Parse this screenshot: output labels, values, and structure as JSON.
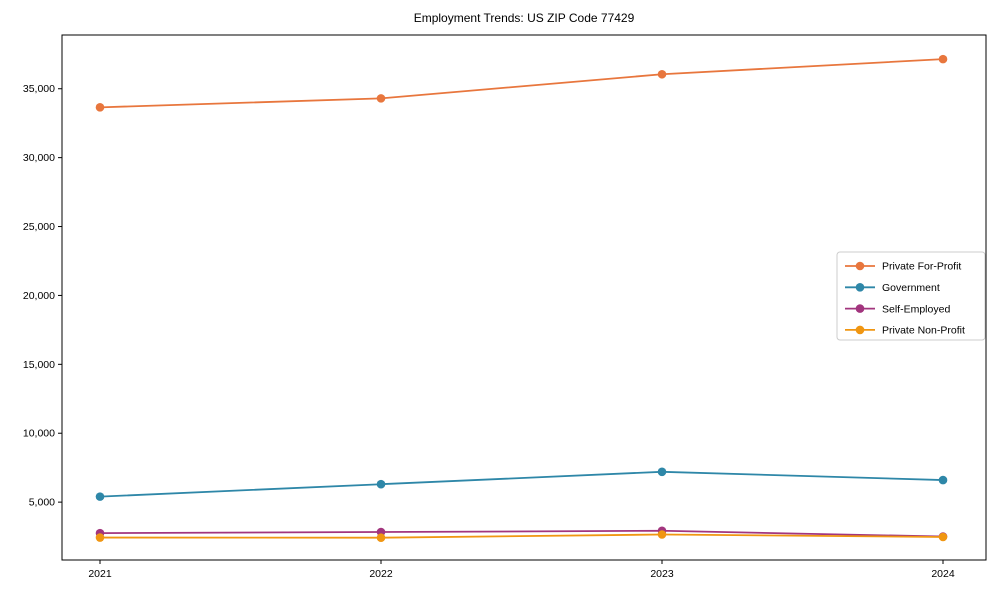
{
  "figure": {
    "title": "Employment Trends: US ZIP Code 77429",
    "background_color": "#ffffff",
    "axis_color": "#000000"
  },
  "chart_data": {
    "type": "line",
    "title": "Employment Trends: US ZIP Code 77429",
    "xlabel": "",
    "ylabel": "",
    "categories": [
      "2021",
      "2022",
      "2023",
      "2024"
    ],
    "x": [
      2021,
      2022,
      2023,
      2024
    ],
    "series": [
      {
        "name": "Private For-Profit",
        "color": "#e8763d",
        "values": [
          33650,
          34300,
          36050,
          37150
        ]
      },
      {
        "name": "Government",
        "color": "#2e87a8",
        "values": [
          5400,
          6300,
          7200,
          6600
        ]
      },
      {
        "name": "Self-Employed",
        "color": "#a2357e",
        "values": [
          2750,
          2830,
          2920,
          2500
        ]
      },
      {
        "name": "Private Non-Profit",
        "color": "#f09612",
        "values": [
          2430,
          2420,
          2650,
          2470
        ]
      }
    ],
    "ylim": [
      800,
      38900
    ],
    "y_ticks": [
      5000,
      10000,
      15000,
      20000,
      25000,
      30000,
      35000
    ],
    "y_tick_labels": [
      "5,000",
      "10,000",
      "15,000",
      "20,000",
      "25,000",
      "30,000",
      "35,000"
    ],
    "grid": false,
    "marker": "circle",
    "legend": {
      "position": "center-right",
      "border_color": "#cccccc",
      "background": "#ffffff",
      "entries": [
        "Private For-Profit",
        "Government",
        "Self-Employed",
        "Private Non-Profit"
      ]
    }
  }
}
